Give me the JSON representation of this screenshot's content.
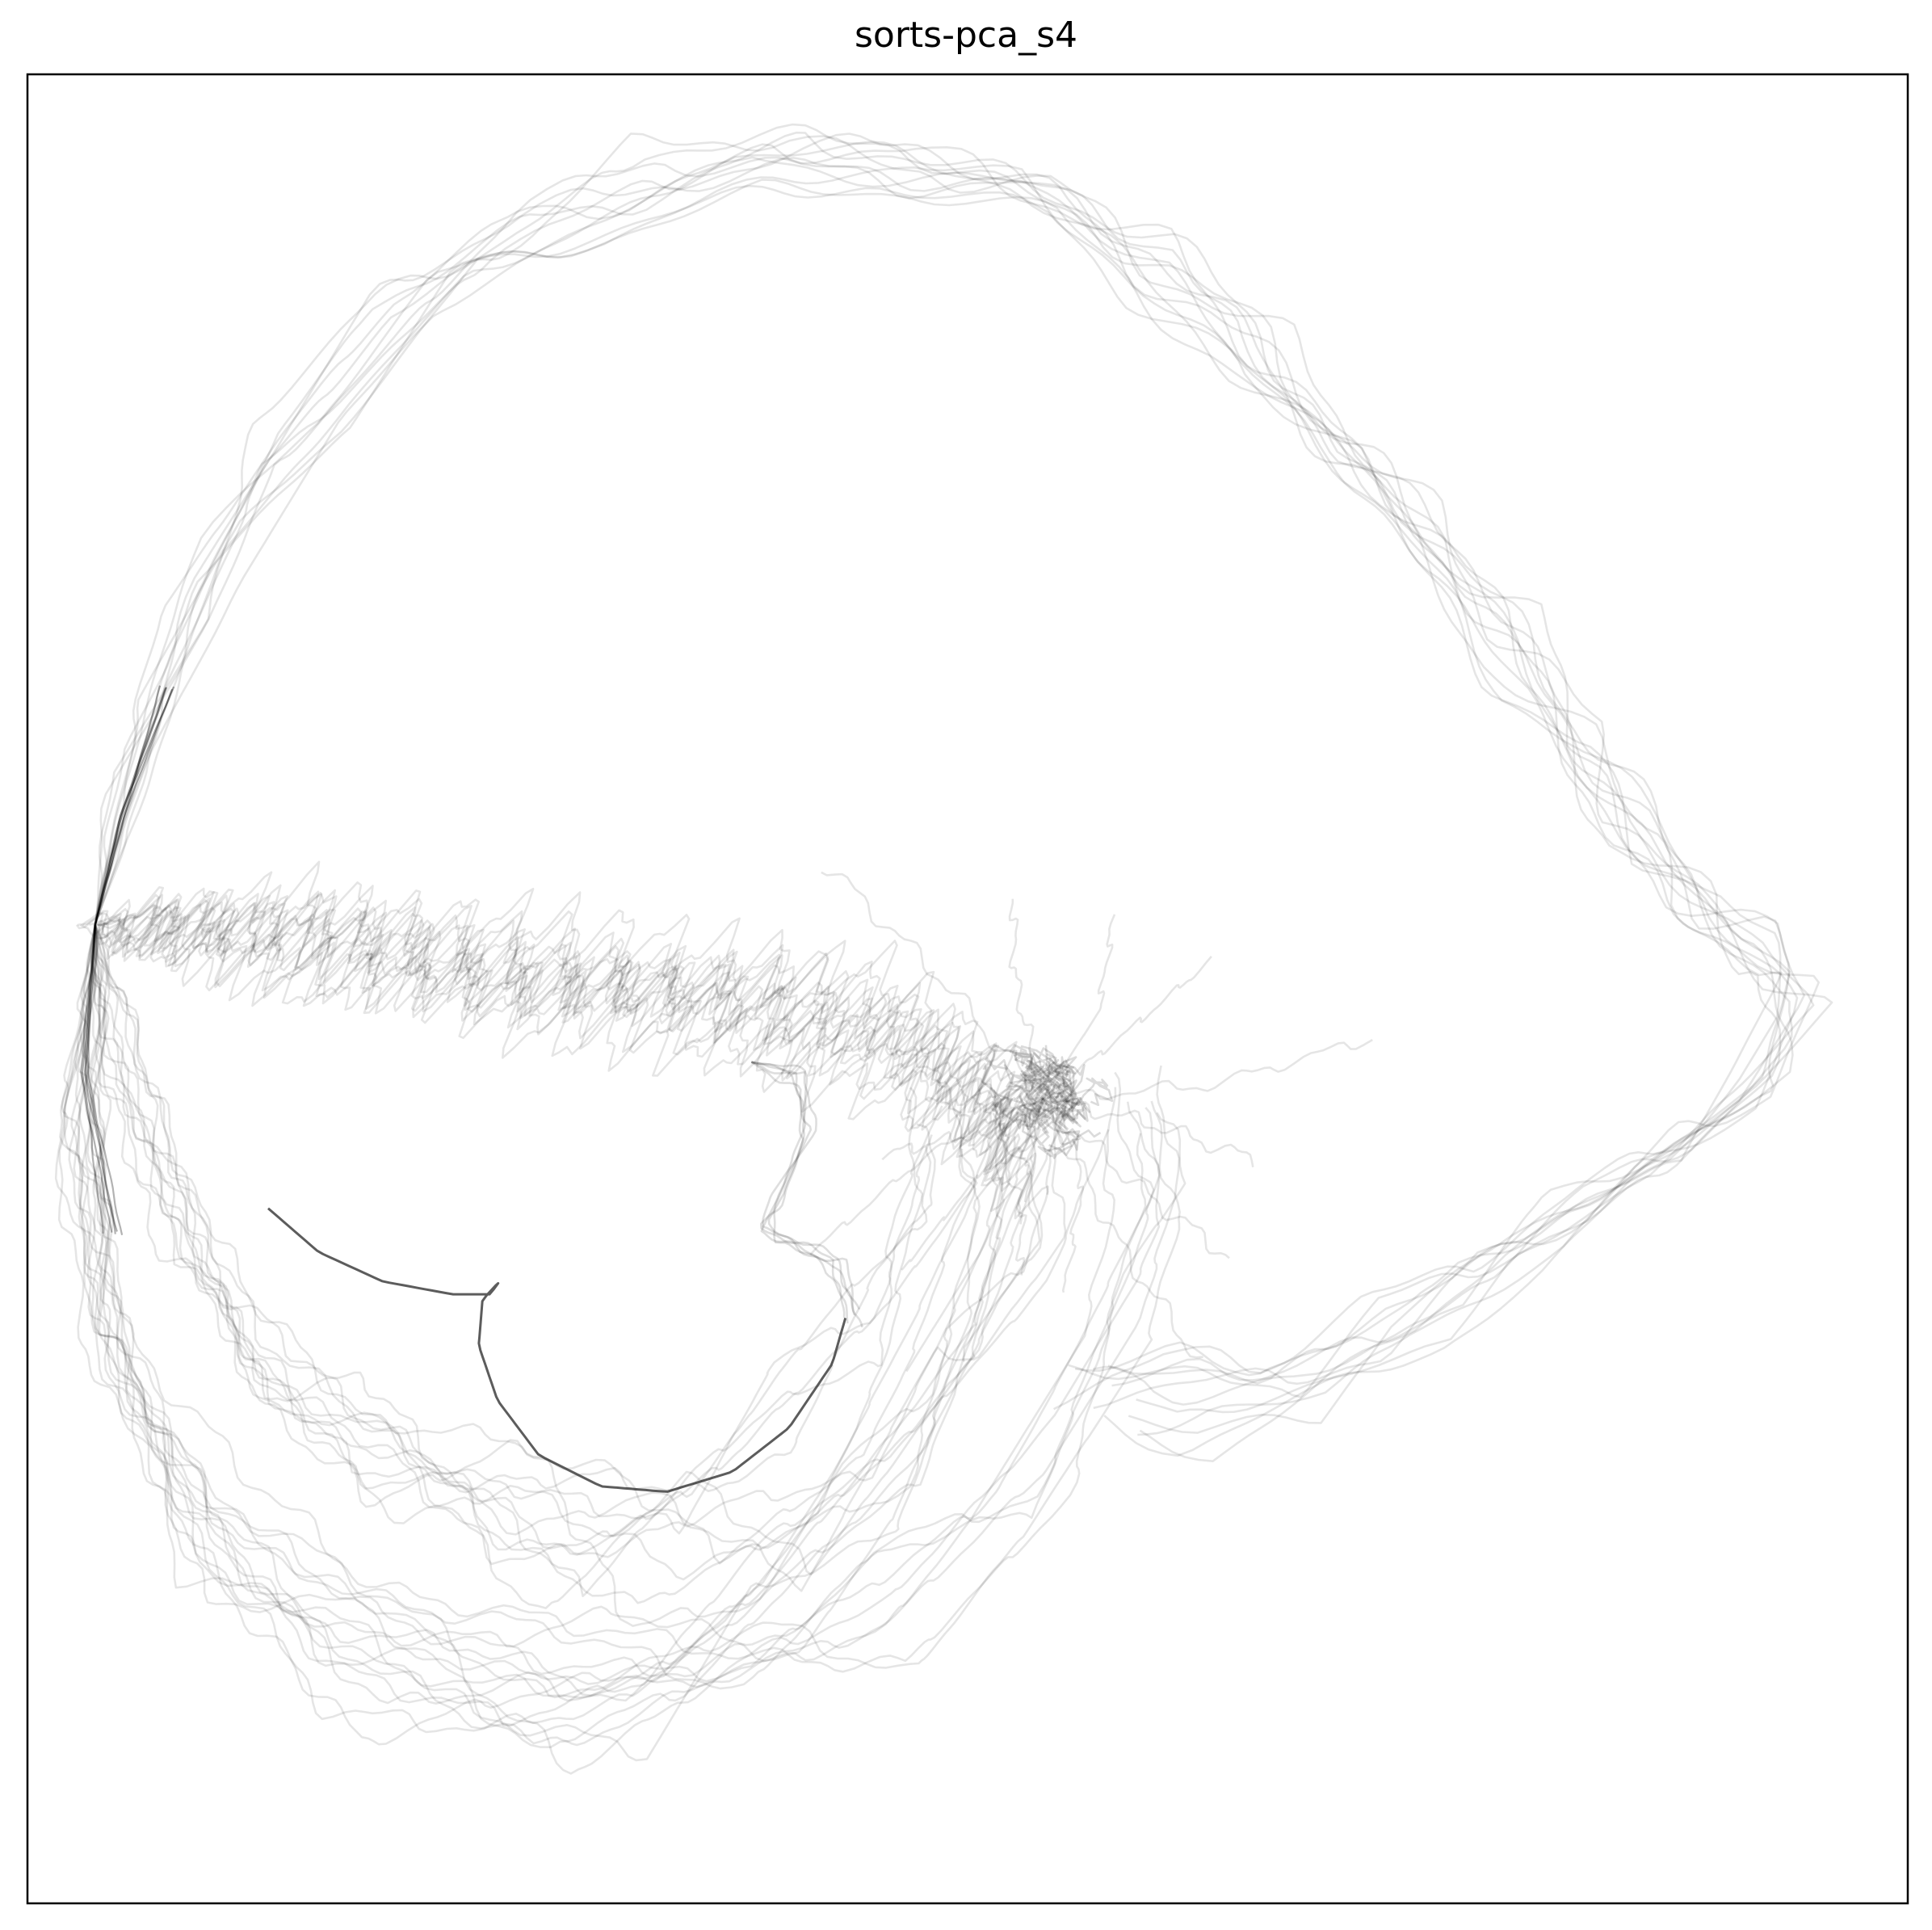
{
  "chart_data": {
    "type": "line",
    "title": "sorts-pca_s4",
    "xlabel": "",
    "ylabel": "",
    "xlim": [
      0,
      100
    ],
    "ylim": [
      0,
      100
    ],
    "grid": false,
    "ticks_visible": false,
    "legend": "none",
    "colors": {
      "trajectory": "#000000",
      "highlight": "#333333",
      "frame": "#000000"
    },
    "highlight_series": {
      "name": "",
      "points": [
        [
          12.8,
          38.0
        ],
        [
          15.5,
          35.6
        ],
        [
          18.9,
          34.0
        ],
        [
          22.6,
          33.3
        ],
        [
          24.6,
          33.3
        ],
        [
          25.1,
          34.0
        ],
        [
          24.2,
          33.0
        ],
        [
          24.0,
          30.5
        ],
        [
          25.0,
          27.5
        ],
        [
          27.2,
          24.5
        ],
        [
          30.5,
          22.8
        ],
        [
          34.0,
          22.5
        ],
        [
          37.5,
          23.6
        ],
        [
          40.5,
          26.0
        ],
        [
          42.8,
          29.5
        ],
        [
          43.5,
          32.0
        ]
      ]
    },
    "families": {
      "top_loop": [
        [
          3.6,
          53.5
        ],
        [
          5.5,
          62.0
        ],
        [
          8.5,
          71.0
        ],
        [
          13.0,
          79.5
        ],
        [
          19.0,
          86.5
        ],
        [
          26.0,
          91.5
        ],
        [
          33.0,
          94.5
        ],
        [
          40.0,
          95.8
        ],
        [
          47.0,
          95.3
        ],
        [
          54.0,
          93.0
        ],
        [
          60.0,
          89.5
        ],
        [
          65.5,
          85.0
        ],
        [
          70.5,
          80.0
        ],
        [
          75.0,
          74.5
        ],
        [
          79.0,
          69.5
        ],
        [
          82.5,
          64.0
        ],
        [
          85.5,
          59.0
        ],
        [
          88.5,
          55.0
        ],
        [
          91.5,
          52.5
        ],
        [
          93.5,
          50.0
        ],
        [
          92.0,
          45.0
        ],
        [
          87.5,
          41.0
        ],
        [
          82.0,
          38.0
        ],
        [
          77.0,
          34.5
        ],
        [
          72.0,
          31.5
        ],
        [
          66.5,
          29.5
        ],
        [
          61.0,
          29.0
        ],
        [
          56.5,
          28.5
        ]
      ],
      "top_loop_wave": [
        0.01,
        0.006,
        0.35
      ],
      "top_loop_alt": [
        [
          3.6,
          53.5
        ],
        [
          6.5,
          64.5
        ],
        [
          10.5,
          74.0
        ],
        [
          16.0,
          82.0
        ],
        [
          22.5,
          88.0
        ],
        [
          30.0,
          92.0
        ],
        [
          38.0,
          94.2
        ],
        [
          46.0,
          94.5
        ],
        [
          53.0,
          92.8
        ],
        [
          59.5,
          89.0
        ],
        [
          64.5,
          84.0
        ],
        [
          69.5,
          79.5
        ],
        [
          74.0,
          73.5
        ],
        [
          78.5,
          67.5
        ],
        [
          82.0,
          62.5
        ],
        [
          86.0,
          58.0
        ],
        [
          90.0,
          54.5
        ],
        [
          92.8,
          52.0
        ],
        [
          94.5,
          49.0
        ],
        [
          91.0,
          43.5
        ],
        [
          86.0,
          39.5
        ],
        [
          80.0,
          35.5
        ],
        [
          74.0,
          31.5
        ],
        [
          68.0,
          27.5
        ],
        [
          62.0,
          26.0
        ],
        [
          57.5,
          26.5
        ]
      ],
      "wave_band": [
        [
          3.6,
          53.5
        ],
        [
          15.0,
          54.0
        ],
        [
          27.0,
          52.5
        ],
        [
          39.0,
          50.5
        ],
        [
          46.5,
          48.5
        ],
        [
          51.0,
          45.5
        ],
        [
          53.0,
          42.0
        ]
      ],
      "bowl": [
        [
          3.6,
          53.5
        ],
        [
          2.8,
          42.0
        ],
        [
          4.5,
          30.5
        ],
        [
          9.5,
          20.5
        ],
        [
          17.0,
          13.5
        ],
        [
          26.0,
          11.0
        ],
        [
          34.5,
          12.5
        ],
        [
          42.0,
          17.0
        ],
        [
          48.5,
          23.5
        ],
        [
          52.5,
          31.0
        ],
        [
          54.5,
          38.5
        ],
        [
          54.0,
          44.0
        ]
      ],
      "inner_bowl": [
        [
          3.6,
          53.5
        ],
        [
          5.0,
          46.0
        ],
        [
          8.0,
          38.0
        ],
        [
          12.5,
          30.0
        ],
        [
          18.0,
          24.0
        ],
        [
          24.5,
          20.5
        ],
        [
          31.0,
          19.5
        ],
        [
          37.5,
          21.5
        ],
        [
          43.0,
          26.0
        ],
        [
          47.0,
          31.5
        ],
        [
          49.5,
          37.5
        ],
        [
          50.8,
          43.0
        ]
      ],
      "hook": [
        [
          38.5,
          46.0
        ],
        [
          41.0,
          45.0
        ],
        [
          41.8,
          42.0
        ],
        [
          40.0,
          38.5
        ],
        [
          39.2,
          36.5
        ],
        [
          43.0,
          35.0
        ],
        [
          44.0,
          32.0
        ]
      ],
      "tangle_center": [
        54.0,
        44.0
      ],
      "ray_directions_deg": [
        200,
        215,
        230,
        245,
        255,
        265,
        280,
        300,
        320,
        340,
        10,
        40,
        70,
        100,
        130,
        160
      ],
      "line_counts": {
        "top_loop": 7,
        "top_loop_alt": 5,
        "wave_band": 14,
        "bowl": 16,
        "inner_bowl": 12,
        "hook": 5,
        "tangle": 9,
        "rays": 16
      },
      "opacity": {
        "faint": 0.1,
        "dense_core": 0.6
      }
    }
  }
}
